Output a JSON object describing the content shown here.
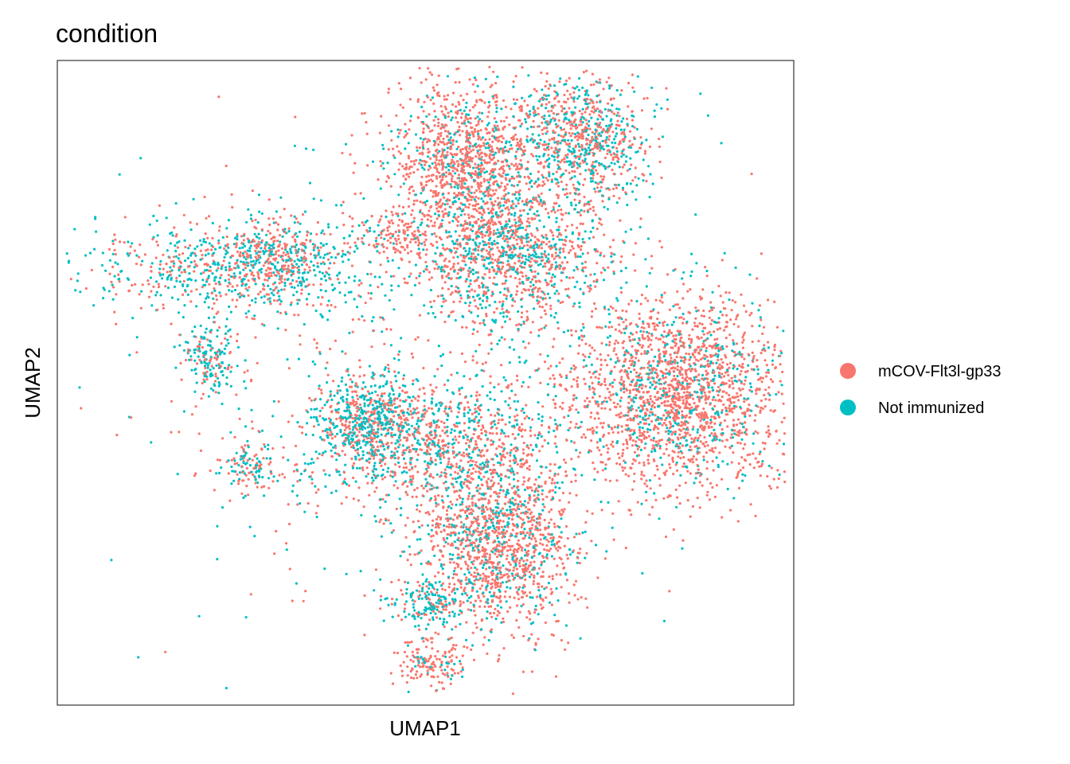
{
  "chart_data": {
    "type": "scatter",
    "title": "condition",
    "xlabel": "UMAP1",
    "ylabel": "UMAP2",
    "xlim": [
      0,
      100
    ],
    "ylim": [
      0,
      100
    ],
    "grid": false,
    "axis_ticks": false,
    "legend_placement": "right",
    "series": [
      {
        "name": "mCOV-Flt3l-gp33",
        "color": "#F8766D"
      },
      {
        "name": "Not immunized",
        "color": "#00BFC4"
      }
    ],
    "clusters": [
      {
        "name": "left-upper",
        "x": 24.4,
        "y": 67.7,
        "sx": 10.5,
        "sy": 3.7,
        "n": 750,
        "red_frac": 0.42
      },
      {
        "name": "left-upper-tip",
        "x": 29.3,
        "y": 70.1,
        "sx": 3.1,
        "sy": 3.1,
        "n": 250,
        "red_frac": 0.6
      },
      {
        "name": "left-mid",
        "x": 20.8,
        "y": 53.4,
        "sx": 2.0,
        "sy": 2.5,
        "n": 180,
        "red_frac": 0.3
      },
      {
        "name": "left-bottom",
        "x": 26.0,
        "y": 37.0,
        "sx": 2.2,
        "sy": 2.0,
        "n": 120,
        "red_frac": 0.45
      },
      {
        "name": "top-left",
        "x": 54.9,
        "y": 84.1,
        "sx": 4.9,
        "sy": 6.2,
        "n": 1100,
        "red_frac": 0.82
      },
      {
        "name": "top-right",
        "x": 70.7,
        "y": 87.8,
        "sx": 4.9,
        "sy": 4.9,
        "n": 900,
        "red_frac": 0.55
      },
      {
        "name": "top-mid",
        "x": 61.6,
        "y": 70.1,
        "sx": 6.2,
        "sy": 5.6,
        "n": 1100,
        "red_frac": 0.6
      },
      {
        "name": "top-left-spur",
        "x": 46.3,
        "y": 73.1,
        "sx": 2.5,
        "sy": 2.0,
        "n": 120,
        "red_frac": 0.9
      },
      {
        "name": "right",
        "x": 84.5,
        "y": 48.5,
        "sx": 7.4,
        "sy": 7.4,
        "n": 2000,
        "red_frac": 0.78
      },
      {
        "name": "middle",
        "x": 50.5,
        "y": 40.9,
        "sx": 9.1,
        "sy": 5.0,
        "n": 1000,
        "red_frac": 0.55
      },
      {
        "name": "mid-left-arm",
        "x": 41.8,
        "y": 44.0,
        "sx": 3.2,
        "sy": 3.7,
        "n": 500,
        "red_frac": 0.4
      },
      {
        "name": "bottom",
        "x": 59.5,
        "y": 24.9,
        "sx": 5.2,
        "sy": 6.8,
        "n": 1400,
        "red_frac": 0.74
      },
      {
        "name": "bottom-spur",
        "x": 50.3,
        "y": 15.6,
        "sx": 2.6,
        "sy": 1.7,
        "n": 160,
        "red_frac": 0.3
      },
      {
        "name": "bottom-tip",
        "x": 50.7,
        "y": 6.5,
        "sx": 2.6,
        "sy": 2.1,
        "n": 150,
        "red_frac": 0.85
      },
      {
        "name": "scatter-background",
        "x": 53.9,
        "y": 50.2,
        "sx": 21.6,
        "sy": 18.6,
        "n": 700,
        "red_frac": 0.5
      }
    ]
  }
}
